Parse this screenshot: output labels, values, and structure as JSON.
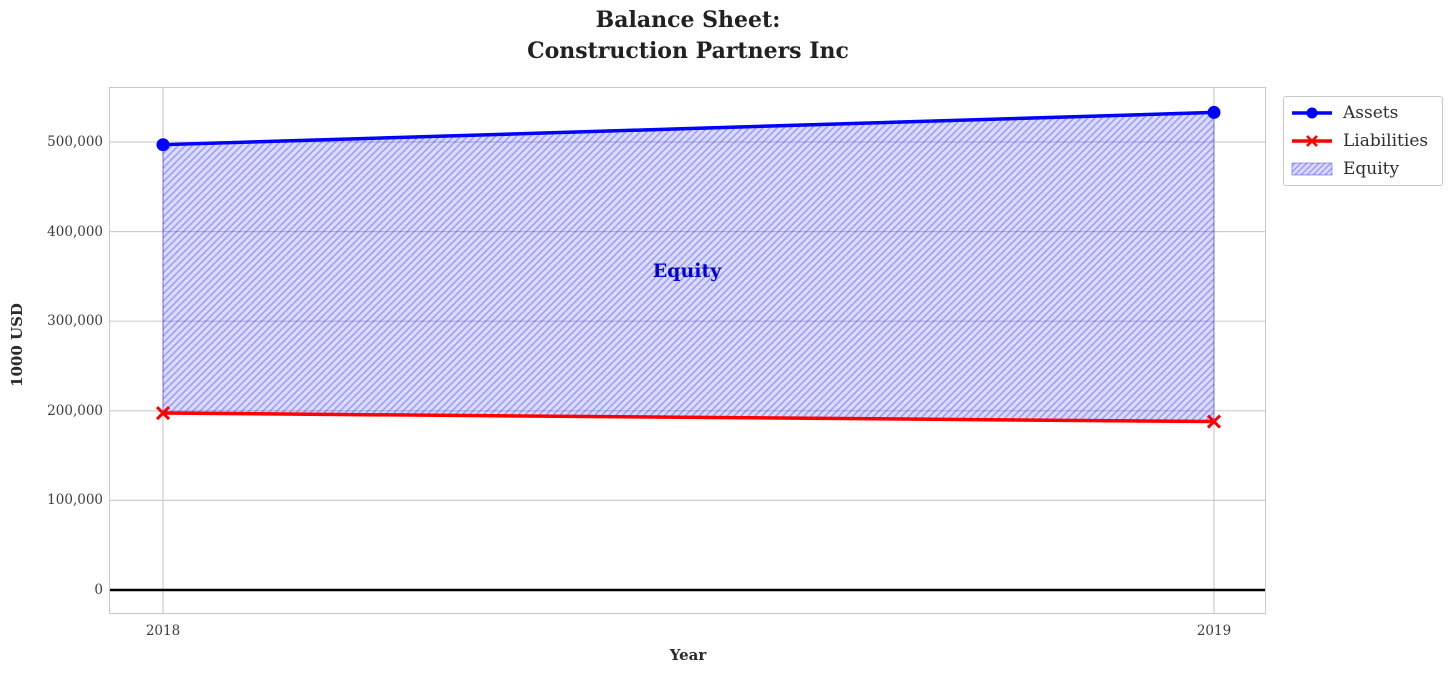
{
  "figure": {
    "background": "#ffffff"
  },
  "chart_data": {
    "type": "line",
    "title": "Balance Sheet:\nConstruction Partners Inc",
    "xlabel": "Year",
    "ylabel": "1000 USD",
    "x": [
      2018,
      2019
    ],
    "series": [
      {
        "name": "Assets",
        "values": [
          497000,
          533000
        ],
        "color": "#0000ff",
        "marker": "circle"
      },
      {
        "name": "Liabilities",
        "values": [
          197500,
          188000
        ],
        "color": "#ff0000",
        "marker": "x"
      }
    ],
    "fill_between": {
      "name": "Equity",
      "upper": "Assets",
      "lower": "Liabilities",
      "equity_values": [
        299500,
        345000
      ],
      "fill_color": "rgba(0,0,255,0.14)",
      "hatch_color": "rgba(0,0,255,0.30)",
      "edge_color": "rgba(0,0,255,0.35)"
    },
    "annotation": {
      "text": "Equity",
      "color": "#0000cd"
    },
    "xticks": {
      "values": [
        2018,
        2019
      ],
      "labels": [
        "2018",
        "2019"
      ]
    },
    "yticks": {
      "values": [
        0,
        100000,
        200000,
        300000,
        400000,
        500000
      ],
      "labels": [
        "0",
        "100,000",
        "200,000",
        "300,000",
        "400,000",
        "500,000"
      ]
    },
    "ylim": [
      -27000,
      560000
    ],
    "grid": true,
    "grid_color": "#cdcdcd",
    "zero_line_color": "#000000",
    "legend_position": "upper right outside"
  },
  "legend": {
    "items": [
      {
        "label": "Assets",
        "swatch": "blue-line-circle-marker"
      },
      {
        "label": "Liabilities",
        "swatch": "red-line-x-marker"
      },
      {
        "label": "Equity",
        "swatch": "lavender-hatched-patch"
      }
    ]
  }
}
